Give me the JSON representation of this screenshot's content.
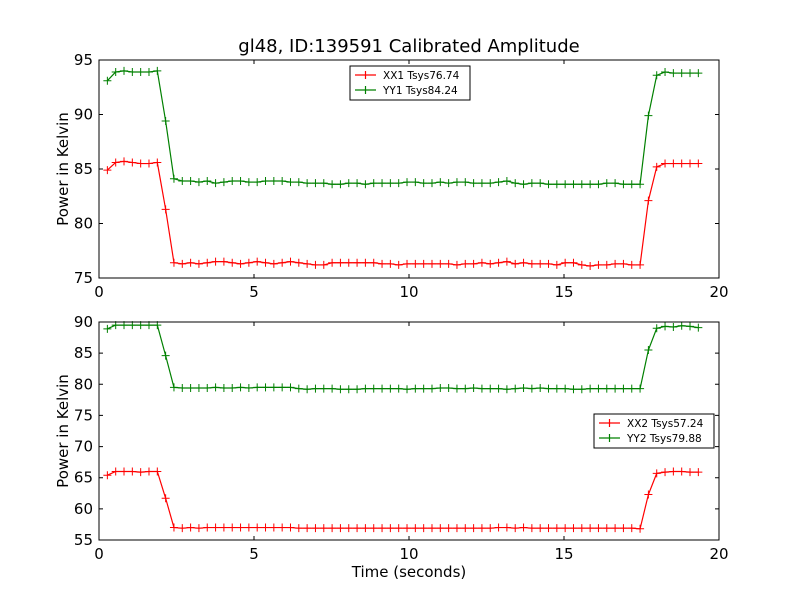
{
  "chart_data": [
    {
      "type": "line",
      "title": "gl48, ID:139591 Calibrated Amplitude",
      "xlabel": "",
      "ylabel": "Power in Kelvin",
      "xlim": [
        0,
        20
      ],
      "ylim": [
        75,
        95
      ],
      "xticks": [
        "0",
        "5",
        "10",
        "15",
        "20"
      ],
      "yticks": [
        "75",
        "80",
        "85",
        "90",
        "95"
      ],
      "grid": false,
      "legend_placement": "top-center",
      "x_start": 0.27,
      "x_step": 0.2685,
      "series": [
        {
          "name": "XX1 Tsys76.74",
          "color": "#ff0000",
          "values": [
            84.9,
            85.6,
            85.7,
            85.6,
            85.5,
            85.5,
            85.6,
            81.3,
            76.4,
            76.3,
            76.4,
            76.3,
            76.4,
            76.5,
            76.5,
            76.4,
            76.3,
            76.4,
            76.5,
            76.4,
            76.3,
            76.4,
            76.5,
            76.4,
            76.3,
            76.2,
            76.2,
            76.4,
            76.4,
            76.4,
            76.4,
            76.4,
            76.4,
            76.3,
            76.3,
            76.2,
            76.3,
            76.3,
            76.3,
            76.3,
            76.3,
            76.3,
            76.2,
            76.3,
            76.3,
            76.4,
            76.3,
            76.4,
            76.5,
            76.3,
            76.4,
            76.3,
            76.3,
            76.3,
            76.2,
            76.4,
            76.4,
            76.2,
            76.1,
            76.2,
            76.2,
            76.3,
            76.3,
            76.2,
            76.2,
            82.1,
            85.2,
            85.5,
            85.5,
            85.5,
            85.5,
            85.5
          ]
        },
        {
          "name": "YY1 Tsys84.24",
          "color": "#008000",
          "values": [
            93.1,
            93.9,
            94.0,
            93.9,
            93.9,
            93.9,
            94.0,
            89.4,
            84.1,
            83.9,
            83.9,
            83.8,
            83.9,
            83.7,
            83.8,
            83.9,
            83.9,
            83.8,
            83.8,
            83.9,
            83.9,
            83.9,
            83.8,
            83.8,
            83.7,
            83.7,
            83.7,
            83.6,
            83.6,
            83.7,
            83.7,
            83.6,
            83.7,
            83.7,
            83.7,
            83.7,
            83.8,
            83.8,
            83.7,
            83.7,
            83.8,
            83.7,
            83.8,
            83.8,
            83.7,
            83.7,
            83.7,
            83.8,
            83.9,
            83.7,
            83.6,
            83.7,
            83.7,
            83.6,
            83.6,
            83.6,
            83.6,
            83.6,
            83.6,
            83.6,
            83.7,
            83.7,
            83.6,
            83.6,
            83.6,
            89.9,
            93.6,
            93.9,
            93.8,
            93.8,
            93.8,
            93.8
          ]
        }
      ]
    },
    {
      "type": "line",
      "title": "",
      "xlabel": "Time (seconds)",
      "ylabel": "Power in Kelvin",
      "xlim": [
        0,
        20
      ],
      "ylim": [
        55,
        90
      ],
      "xticks": [
        "0",
        "5",
        "10",
        "15",
        "20"
      ],
      "yticks": [
        "55",
        "60",
        "65",
        "70",
        "75",
        "80",
        "85",
        "90"
      ],
      "grid": false,
      "legend_placement": "center-right",
      "x_start": 0.27,
      "x_step": 0.2685,
      "series": [
        {
          "name": "XX2 Tsys57.24",
          "color": "#ff0000",
          "values": [
            65.4,
            66.0,
            66.0,
            66.0,
            65.9,
            66.0,
            66.0,
            61.7,
            57.0,
            56.9,
            57.0,
            56.9,
            57.0,
            57.0,
            57.0,
            57.0,
            57.0,
            57.0,
            57.0,
            57.0,
            57.0,
            57.0,
            57.0,
            56.9,
            56.9,
            56.9,
            56.9,
            56.9,
            56.9,
            56.9,
            56.9,
            56.9,
            56.9,
            56.9,
            56.9,
            56.9,
            56.9,
            56.9,
            56.9,
            56.9,
            56.9,
            56.9,
            56.9,
            56.9,
            56.9,
            56.9,
            56.9,
            57.0,
            57.0,
            56.9,
            57.0,
            56.9,
            56.9,
            56.9,
            56.9,
            56.9,
            56.9,
            56.9,
            56.9,
            56.9,
            56.9,
            56.9,
            56.9,
            56.9,
            56.8,
            62.3,
            65.7,
            65.9,
            66.0,
            66.0,
            65.9,
            65.9
          ]
        },
        {
          "name": "YY2 Tsys79.88",
          "color": "#008000",
          "values": [
            88.9,
            89.5,
            89.5,
            89.5,
            89.5,
            89.5,
            89.5,
            84.6,
            79.5,
            79.4,
            79.4,
            79.4,
            79.4,
            79.5,
            79.4,
            79.4,
            79.5,
            79.4,
            79.5,
            79.5,
            79.5,
            79.5,
            79.5,
            79.3,
            79.2,
            79.3,
            79.3,
            79.3,
            79.2,
            79.2,
            79.2,
            79.3,
            79.3,
            79.3,
            79.3,
            79.3,
            79.2,
            79.3,
            79.3,
            79.3,
            79.4,
            79.4,
            79.3,
            79.3,
            79.4,
            79.3,
            79.3,
            79.3,
            79.2,
            79.3,
            79.4,
            79.3,
            79.4,
            79.3,
            79.3,
            79.3,
            79.2,
            79.2,
            79.3,
            79.3,
            79.3,
            79.3,
            79.3,
            79.3,
            79.3,
            85.5,
            89.0,
            89.3,
            89.2,
            89.4,
            89.3,
            89.1
          ]
        }
      ]
    }
  ]
}
